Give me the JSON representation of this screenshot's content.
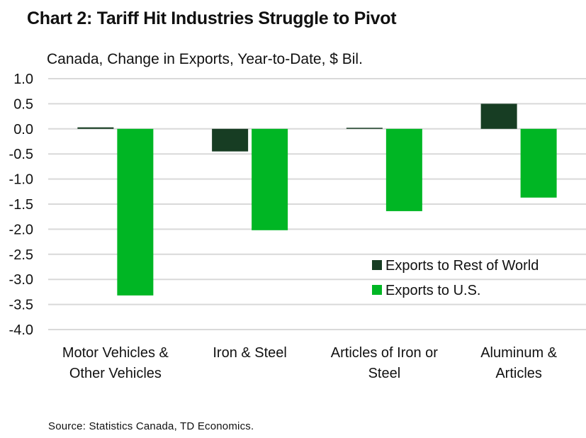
{
  "chart_data": {
    "type": "bar",
    "title": "Chart 2: Tariff Hit Industries Struggle to Pivot",
    "subtitle": "Canada, Change in Exports, Year-to-Date, $ Bil.",
    "xlabel": "",
    "ylabel": "",
    "ylim": [
      -4.0,
      1.0
    ],
    "yticks": [
      1.0,
      0.5,
      0.0,
      -0.5,
      -1.0,
      -1.5,
      -2.0,
      -2.5,
      -3.0,
      -3.5,
      -4.0
    ],
    "ytick_labels": [
      "1.0",
      "0.5",
      "0.0",
      "-0.5",
      "-1.0",
      "-1.5",
      "-2.0",
      "-2.5",
      "-3.0",
      "-3.5",
      "-4.0"
    ],
    "grid": true,
    "categories": [
      [
        "Motor Vehicles &",
        "Other Vehicles"
      ],
      [
        "Iron & Steel"
      ],
      [
        "Articles of Iron or",
        "Steel"
      ],
      [
        "Aluminum &",
        "Articles"
      ]
    ],
    "series": [
      {
        "name": "Exports to Rest of World",
        "color": "#173d23",
        "values": [
          0.03,
          -0.45,
          0.01,
          0.5
        ]
      },
      {
        "name": "Exports to U.S.",
        "color": "#00b624",
        "values": [
          -3.32,
          -2.02,
          -1.64,
          -1.37
        ]
      }
    ],
    "legend_position": "lower-right",
    "source": "Source: Statistics Canada, TD Economics."
  }
}
